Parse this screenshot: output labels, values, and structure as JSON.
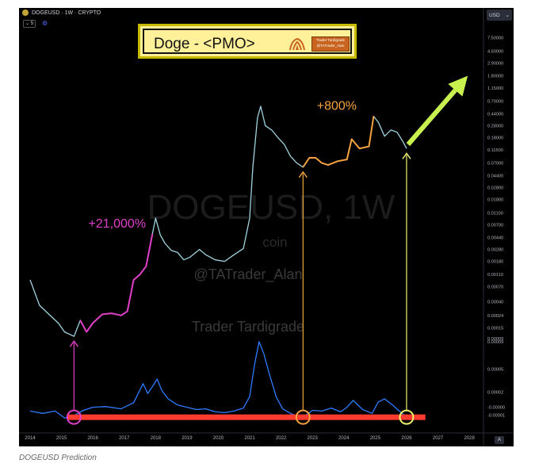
{
  "header": {
    "symbol": "DOGEUSD · 1W · CRYPTO",
    "interval_chip": "5",
    "currency": "USD"
  },
  "title_banner": {
    "title": "Doge - <PMO>",
    "brand_line_1": "Trader Tardigrade",
    "brand_line_2": "@TATrader_Alan"
  },
  "watermark": {
    "symbol": "DOGEUSD, 1W",
    "exchange": "coin",
    "handle": "@TATrader_Alan",
    "brand": "Trader Tardigrade"
  },
  "auto_button": "A",
  "caption": "DOGEUSD Prediction",
  "colors": {
    "background": "#000000",
    "price_line": "#9fd4e0",
    "pmo_line": "#2e7bff",
    "highlight_pink": "#e040c8",
    "highlight_orange": "#f5a340",
    "target_yellow": "#eef36a",
    "base_bar": "#ff3b2f",
    "arrow_green": "#c8f04e",
    "banner_fill": "#fff19a",
    "banner_border": "#c9b800"
  },
  "chart_data": [
    {
      "type": "line",
      "series_name": "DOGEUSD",
      "yscale": "log",
      "x": [
        2014.0,
        2014.3,
        2014.6,
        2014.9,
        2015.1,
        2015.4,
        2015.6,
        2015.8,
        2016.0,
        2016.3,
        2016.6,
        2016.9,
        2017.1,
        2017.3,
        2017.5,
        2017.7,
        2017.9,
        2018.0,
        2018.15,
        2018.3,
        2018.5,
        2018.7,
        2018.9,
        2019.1,
        2019.4,
        2019.6,
        2019.9,
        2020.2,
        2020.5,
        2020.8,
        2021.0,
        2021.1,
        2021.25,
        2021.35,
        2021.5,
        2021.7,
        2021.9,
        2022.1,
        2022.3,
        2022.5,
        2022.7,
        2022.9,
        2023.1,
        2023.3,
        2023.5,
        2023.8,
        2024.1,
        2024.25,
        2024.5,
        2024.8,
        2024.95,
        2025.1,
        2025.3,
        2025.5,
        2025.7,
        2025.9,
        2026.0
      ],
      "y": [
        0.0009,
        0.00035,
        0.00025,
        0.00018,
        0.00013,
        0.00011,
        0.0002,
        0.00013,
        0.00018,
        0.00025,
        0.00026,
        0.00024,
        0.00028,
        0.0009,
        0.0011,
        0.0015,
        0.005,
        0.009,
        0.0048,
        0.0035,
        0.0027,
        0.0025,
        0.0019,
        0.0021,
        0.0028,
        0.0023,
        0.0019,
        0.0018,
        0.0023,
        0.0029,
        0.009,
        0.06,
        0.38,
        0.58,
        0.28,
        0.24,
        0.18,
        0.14,
        0.09,
        0.07,
        0.06,
        0.085,
        0.085,
        0.07,
        0.065,
        0.075,
        0.08,
        0.17,
        0.12,
        0.13,
        0.4,
        0.32,
        0.19,
        0.24,
        0.22,
        0.15,
        0.12
      ],
      "ylim": [
        8e-05,
        12.5
      ],
      "y_ticks": [
        7.5,
        4.5,
        2.9,
        1.8,
        1.15,
        0.7,
        0.44,
        0.28,
        0.18,
        0.115,
        0.07,
        0.044,
        0.028,
        0.018,
        0.011,
        0.007,
        0.0044,
        0.0028,
        0.0018,
        0.0011,
        0.0007,
        0.0004,
        0.00024,
        0.00015,
        9e-05
      ],
      "y_tick_labels": [
        "7.50000",
        "4.50000",
        "2.90000",
        "1.80000",
        "1.15000",
        "0.70000",
        "0.44000",
        "0.28000",
        "0.18000",
        "0.11500",
        "0.07000",
        "0.04400",
        "0.02800",
        "0.01800",
        "0.01100",
        "0.00700",
        "0.00440",
        "0.00280",
        "0.00180",
        "0.00110",
        "0.00070",
        "0.00040",
        "0.00024",
        "0.00015",
        "0.00009"
      ],
      "highlight_ranges": [
        {
          "x_start": 2015.6,
          "x_end": 2017.95,
          "color": "#e040c8",
          "label": "+21,000%"
        },
        {
          "x_start": 2022.6,
          "x_end": 2024.95,
          "color": "#f5a340",
          "label": "+800%"
        }
      ]
    },
    {
      "type": "line",
      "series_name": "PMO",
      "x": [
        2014.0,
        2014.4,
        2014.8,
        2015.1,
        2015.35,
        2015.7,
        2016.0,
        2016.4,
        2016.9,
        2017.3,
        2017.6,
        2017.75,
        2017.9,
        2018.05,
        2018.2,
        2018.4,
        2018.7,
        2019.0,
        2019.3,
        2019.6,
        2019.9,
        2020.2,
        2020.5,
        2020.8,
        2021.0,
        2021.15,
        2021.3,
        2021.45,
        2021.65,
        2021.85,
        2022.05,
        2022.3,
        2022.55,
        2022.7,
        2023.0,
        2023.3,
        2023.6,
        2023.9,
        2024.1,
        2024.3,
        2024.6,
        2024.9,
        2025.1,
        2025.3,
        2025.55,
        2025.8,
        2026.0
      ],
      "y": [
        -5e-06,
        -8e-06,
        -5e-06,
        -1.4e-05,
        -1.2e-05,
        -4e-06,
        0.0,
        1e-06,
        -2e-06,
        6e-06,
        3.1e-05,
        1.8e-05,
        2.7e-05,
        3.7e-05,
        2.2e-05,
        1.1e-05,
        3e-06,
        0.0,
        -3e-06,
        -2e-06,
        -6e-06,
        -7e-06,
        -5e-06,
        -1e-06,
        1.4e-05,
        5.5e-05,
        8.6e-05,
        7e-05,
        4e-05,
        1.3e-05,
        -2e-06,
        -8e-06,
        -1.2e-05,
        -1.3e-05,
        -4e-06,
        -5e-06,
        -1e-06,
        -6e-06,
        0.0,
        9e-06,
        -3e-06,
        -8e-06,
        7e-06,
        1.1e-05,
        3e-06,
        -6e-06,
        -1.3e-05
      ],
      "ylim": [
        -1.7e-05,
        9e-05
      ],
      "y_ticks": [
        9e-05,
        5e-05,
        2e-05,
        0.0,
        -1e-05
      ],
      "y_tick_labels": [
        "0.00009",
        "0.00005",
        "0.00002",
        "-0.00000",
        "-0.00001"
      ],
      "baseline": -1.3e-05,
      "markers": [
        {
          "x": 2015.4,
          "color": "#e040c8",
          "label": ""
        },
        {
          "x": 2022.7,
          "color": "#f5a340",
          "label": ""
        },
        {
          "x": 2026.0,
          "color": "#eef36a",
          "label": ""
        }
      ]
    }
  ],
  "x_axis": {
    "ticks": [
      2014,
      2015,
      2016,
      2017,
      2018,
      2019,
      2020,
      2021,
      2022,
      2023,
      2024,
      2025,
      2026,
      2027,
      2028
    ],
    "tick_labels": [
      "2014",
      "2015",
      "2016",
      "2017",
      "2018",
      "2019",
      "2020",
      "2021",
      "2022",
      "2023",
      "2024",
      "2025",
      "2026",
      "2027",
      "2028"
    ],
    "xlim": [
      2013.9,
      2028.3
    ]
  }
}
